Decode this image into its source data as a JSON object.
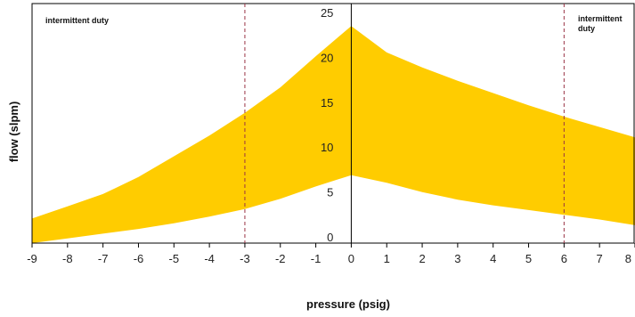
{
  "chart_data": {
    "type": "area",
    "title": "",
    "xlabel": "pressure (psig)",
    "ylabel": "flow (slpm)",
    "xlim": [
      -9,
      8
    ],
    "ylim": [
      0,
      25
    ],
    "x_ticks": [
      "-9",
      "-8",
      "-7",
      "-6",
      "-5",
      "-4",
      "-3",
      "-2",
      "-1",
      "0",
      "1",
      "2",
      "3",
      "4",
      "5",
      "6",
      "7",
      "8"
    ],
    "y_ticks": [
      "0",
      "5",
      "10",
      "15",
      "20",
      "25"
    ],
    "grid": false,
    "fill_color": "#FFCC00",
    "band": {
      "x": [
        -9,
        -8,
        -7,
        -6,
        -5,
        -4,
        -3,
        -2,
        -1,
        0,
        1,
        2,
        3,
        4,
        5,
        6,
        7,
        8
      ],
      "upper": [
        2.6,
        3.9,
        5.2,
        7.0,
        9.2,
        11.4,
        13.8,
        16.5,
        19.8,
        23.0,
        20.2,
        18.6,
        17.2,
        15.9,
        14.6,
        13.4,
        12.3,
        11.2
      ],
      "lower": [
        0.0,
        0.5,
        1.0,
        1.5,
        2.1,
        2.8,
        3.6,
        4.7,
        6.0,
        7.2,
        6.4,
        5.4,
        4.6,
        4.0,
        3.5,
        3.0,
        2.5,
        1.9
      ]
    },
    "reference_lines": [
      {
        "x": -3,
        "color": "#993344",
        "style": "dashed"
      },
      {
        "x": 6,
        "color": "#993344",
        "style": "dashed"
      }
    ],
    "annotations": [
      {
        "text_lines": [
          "intermittent duty"
        ]
      },
      {
        "text_lines": [
          "intermittent",
          "duty"
        ]
      }
    ]
  }
}
